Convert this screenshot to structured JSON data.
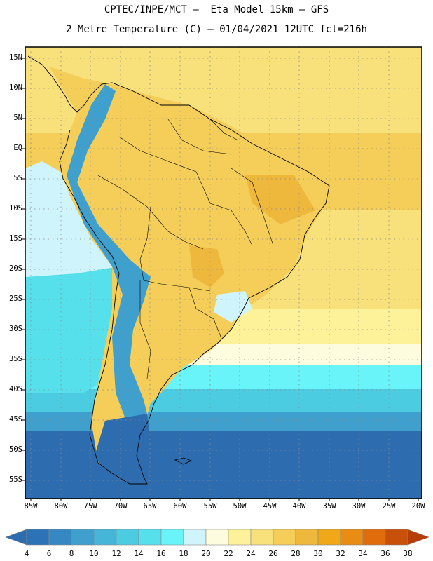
{
  "title_line1": "CPTEC/INPE/MCT –  Eta Model 15km – GFS",
  "title_line2": "2 Metre Temperature (C) – 01/04/2021 12UTC fct=216h",
  "map": {
    "region": "South America",
    "lon_range": [
      -85,
      -20
    ],
    "lat_range": [
      -58,
      17
    ],
    "lat_ticks": [
      "15N",
      "10N",
      "5N",
      "EQ",
      "5S",
      "10S",
      "15S",
      "20S",
      "25S",
      "30S",
      "35S",
      "40S",
      "45S",
      "50S",
      "55S"
    ],
    "lon_ticks": [
      "85W",
      "80W",
      "75W",
      "70W",
      "65W",
      "60W",
      "55W",
      "50W",
      "45W",
      "40W",
      "35W",
      "30W",
      "25W",
      "20W"
    ],
    "gridlines": true
  },
  "colorbar": {
    "labels": [
      "4",
      "6",
      "8",
      "10",
      "12",
      "14",
      "16",
      "18",
      "20",
      "22",
      "24",
      "26",
      "28",
      "30",
      "32",
      "34",
      "36",
      "38"
    ],
    "colors": [
      "#2e6cb0",
      "#2b72b6",
      "#3688c2",
      "#3fa0ce",
      "#46b6d8",
      "#4ccce0",
      "#55e0ec",
      "#68f4f8",
      "#d0f4fc",
      "#fefcde",
      "#fdf29a",
      "#f8e07a",
      "#f4ce58",
      "#eeb83c",
      "#f0a818",
      "#e88c14",
      "#e06c0c",
      "#c85008",
      "#b63c08"
    ]
  }
}
